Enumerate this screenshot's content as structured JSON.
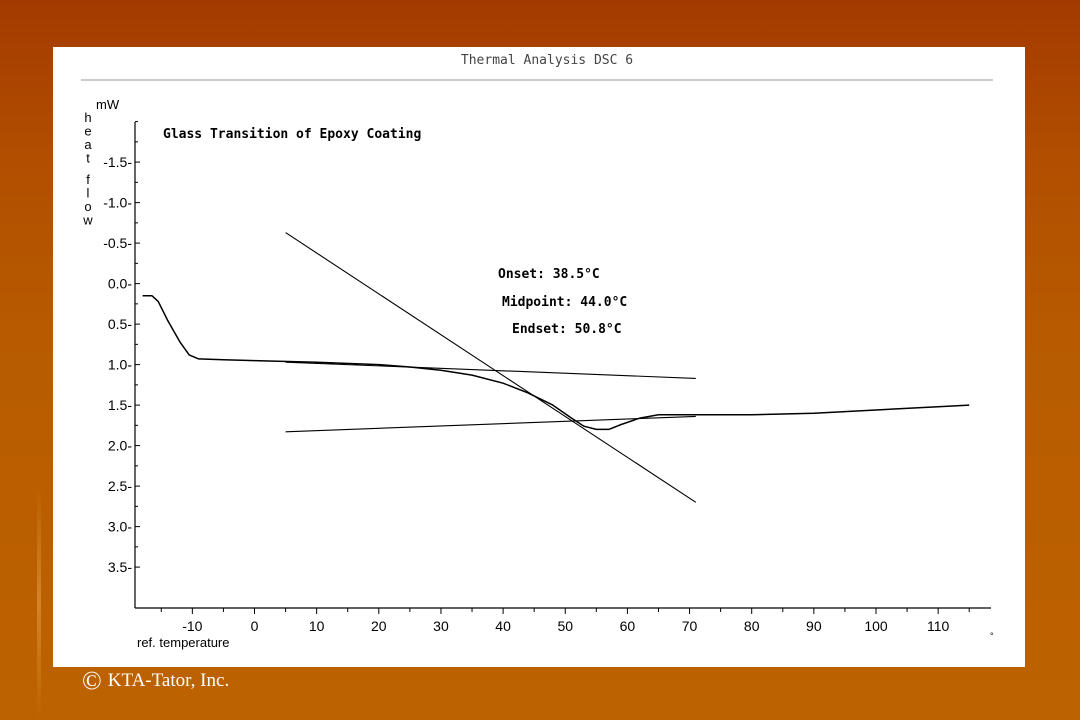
{
  "header": {
    "title": "Thermal Analysis  DSC 6"
  },
  "footer": {
    "copyright_symbol": "©",
    "copyright_text": "KTA-Tator, Inc."
  },
  "chart_data": {
    "type": "line",
    "title": "Glass Transition of Epoxy Coating",
    "unit": "mW",
    "ylabel": "heat flow",
    "xlabel": "ref. temperature",
    "x_unit_mark": "°",
    "xlim": [
      -17,
      117
    ],
    "ylim": [
      -2.0,
      3.95
    ],
    "y_inverted": true,
    "xticks": [
      -10,
      0,
      10,
      20,
      30,
      40,
      50,
      60,
      70,
      80,
      90,
      100,
      110
    ],
    "yticks": [
      -1.5,
      -1.0,
      -0.5,
      0.0,
      0.5,
      1.0,
      1.5,
      2.0,
      2.5,
      3.0,
      3.5
    ],
    "ytick_labels": [
      "-1.5",
      "-1.0",
      "-0.5",
      "0.0",
      "0.5",
      "1.0",
      "1.5",
      "2.0",
      "2.5",
      "3.0",
      "3.5"
    ],
    "annotations": [
      "Onset: 38.5°C",
      "Midpoint: 44.0°C",
      "Endset: 50.8°C"
    ],
    "series": [
      {
        "color": "#000000",
        "x": [
          -18,
          -16.5,
          -15.5,
          -14,
          -12,
          -10.5,
          -9,
          -5,
          0,
          10,
          20,
          25,
          30,
          35,
          40,
          44,
          48,
          51,
          53,
          55,
          57,
          59,
          62,
          65,
          70,
          80,
          90,
          100,
          110,
          115
        ],
        "y": [
          0.15,
          0.15,
          0.22,
          0.45,
          0.72,
          0.88,
          0.93,
          0.94,
          0.95,
          0.97,
          1.0,
          1.03,
          1.07,
          1.13,
          1.23,
          1.35,
          1.5,
          1.66,
          1.76,
          1.8,
          1.8,
          1.74,
          1.66,
          1.62,
          1.62,
          1.62,
          1.6,
          1.56,
          1.52,
          1.5
        ]
      },
      {
        "color": "#000000",
        "x": [
          5,
          71
        ],
        "y": [
          0.97,
          1.17
        ]
      },
      {
        "color": "#000000",
        "x": [
          5,
          71
        ],
        "y": [
          1.83,
          1.64
        ]
      },
      {
        "color": "#000000",
        "x": [
          5,
          71
        ],
        "y": [
          -0.63,
          2.7
        ]
      }
    ]
  }
}
